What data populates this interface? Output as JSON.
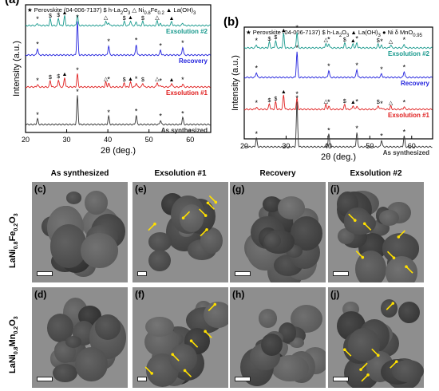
{
  "chart_data": [
    {
      "type": "line",
      "panel_label": "(a)",
      "legend": {
        "perovskite": "Perovskite (04-006-7137)",
        "la2o3": "h-La",
        "la2o3_sub": "2",
        "la2o3_tail": "O",
        "la2o3_sub2": "3",
        "nife": "Ni",
        "nife_sub": "0.8",
        "nife_mid": "Fe",
        "nife_sub2": "0.2",
        "laoh": "La(OH)",
        "laoh_sub": "3"
      },
      "series": [
        {
          "name": "Exsolution #2",
          "color": "#1a9a8e"
        },
        {
          "name": "Recovery",
          "color": "#2222dd"
        },
        {
          "name": "Exsolution #1",
          "color": "#e02020"
        },
        {
          "name": "As synthesized",
          "color": "#333333"
        }
      ],
      "xlabel": "2θ (deg.)",
      "ylabel": "Intensity (a.u.)",
      "xlim": [
        20,
        65
      ],
      "xticks": [
        20,
        30,
        40,
        50,
        60
      ],
      "peaks": [
        22.9,
        32.6,
        40.2,
        46.9,
        52.8,
        58.2
      ]
    },
    {
      "type": "line",
      "panel_label": "(b)",
      "legend": {
        "perovskite": "Perovskite (04-006-7137)",
        "la2o3": "h-La",
        "la2o3_sub": "2",
        "la2o3_tail": "O",
        "la2o3_sub2": "3",
        "laoh": "La(OH)",
        "laoh_sub": "3",
        "ni": "Ni",
        "mno": "MnO",
        "mno_sub": "0.95"
      },
      "series": [
        {
          "name": "Exsolution #2",
          "color": "#1a9a8e"
        },
        {
          "name": "Recovery",
          "color": "#2222dd"
        },
        {
          "name": "Exsolution #1",
          "color": "#e02020"
        },
        {
          "name": "As synthesized",
          "color": "#333333"
        }
      ],
      "xlabel": "2θ (deg.)",
      "ylabel": "Intensity (a.u.)",
      "xlim": [
        20,
        65
      ],
      "xticks": [
        20,
        30,
        40,
        50,
        60
      ],
      "peaks": [
        22.9,
        32.6,
        40.2,
        46.9,
        52.8,
        58.2
      ]
    }
  ],
  "tem": {
    "columns": [
      "As synthesized",
      "Exsolution #1",
      "Recovery",
      "Exsolution #2"
    ],
    "rows": [
      {
        "label_a": "LaNi",
        "sub1": "0.8",
        "label_b": "Fe",
        "sub2": "0.2",
        "label_c": "O",
        "sub3": "3",
        "panels": [
          "(c)",
          "(e)",
          "(g)",
          "(i)"
        ]
      },
      {
        "label_a": "LaNi",
        "sub1": "0.8",
        "label_b": "Mn",
        "sub2": "0.2",
        "label_c": "O",
        "sub3": "3",
        "panels": [
          "(d)",
          "(f)",
          "(h)",
          "(j)"
        ]
      }
    ]
  },
  "colors": {
    "tem_bg": "#8e8e8e",
    "arrow": "#ffe000"
  }
}
